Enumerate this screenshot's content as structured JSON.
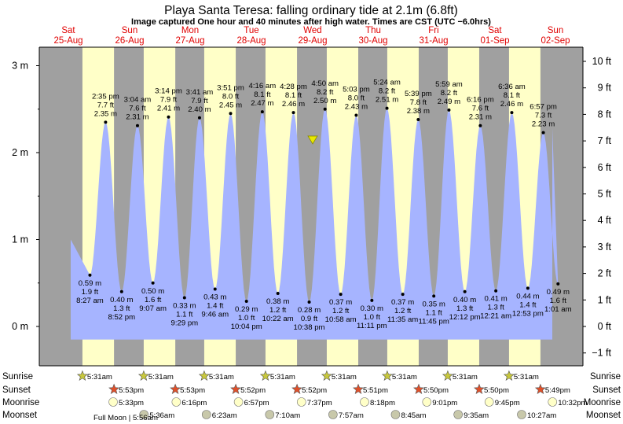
{
  "title": "Playa Santa Teresa: falling  ordinary tide at 2.1m (6.8ft)",
  "subtitle": "Image captured One hour and 40 minutes after high water. Times are CST (UTC −6.0hrs)",
  "colors": {
    "tide_fill": "#a6b4ff",
    "day_band": "#ffffc8",
    "night_band": "#a0a0a0",
    "day_header": "#e00000",
    "now_marker": "#e8e800",
    "sunrise_star": "#c8c83c",
    "sunset_star": "#e0502a",
    "moon": "#ffffc8",
    "moon_set": "#c8c8aa"
  },
  "chart_data": {
    "type": "area",
    "ylabel_left_unit": "m",
    "ylabel_right_unit": "ft",
    "ylim_m": [
      -0.3,
      3.2
    ],
    "left_ticks": [
      "0 m",
      "1 m",
      "2 m",
      "3 m"
    ],
    "right_ticks": [
      "−1 ft",
      "0 ft",
      "1 ft",
      "2 ft",
      "3 ft",
      "4 ft",
      "5 ft",
      "6 ft",
      "7 ft",
      "8 ft",
      "9 ft",
      "10 ft"
    ],
    "days": [
      {
        "name": "Sat",
        "date": "25‑Aug"
      },
      {
        "name": "Sun",
        "date": "26‑Aug"
      },
      {
        "name": "Mon",
        "date": "27‑Aug"
      },
      {
        "name": "Tue",
        "date": "28‑Aug"
      },
      {
        "name": "Wed",
        "date": "29‑Aug"
      },
      {
        "name": "Thu",
        "date": "30‑Aug"
      },
      {
        "name": "Fri",
        "date": "31‑Aug"
      },
      {
        "name": "Sat",
        "date": "01‑Sep"
      },
      {
        "name": "Sun",
        "date": "02‑Sep"
      }
    ],
    "tides": [
      {
        "type": "low",
        "time": "8:27 am",
        "m": "0.59 m",
        "ft": "1.9 ft",
        "value": 0.59
      },
      {
        "type": "high",
        "time": "2:35 pm",
        "m": "2.35 m",
        "ft": "7.7 ft",
        "value": 2.35
      },
      {
        "type": "low",
        "time": "8:52 pm",
        "m": "0.40 m",
        "ft": "1.3 ft",
        "value": 0.4
      },
      {
        "type": "high",
        "time": "3:04 am",
        "m": "2.31 m",
        "ft": "7.6 ft",
        "value": 2.31
      },
      {
        "type": "low",
        "time": "9:07 am",
        "m": "0.50 m",
        "ft": "1.6 ft",
        "value": 0.5
      },
      {
        "type": "high",
        "time": "3:14 pm",
        "m": "2.41 m",
        "ft": "7.9 ft",
        "value": 2.41
      },
      {
        "type": "low",
        "time": "9:29 pm",
        "m": "0.33 m",
        "ft": "1.1 ft",
        "value": 0.33
      },
      {
        "type": "high",
        "time": "3:41 am",
        "m": "2.40 m",
        "ft": "7.9 ft",
        "value": 2.4
      },
      {
        "type": "low",
        "time": "9:46 am",
        "m": "0.43 m",
        "ft": "1.4 ft",
        "value": 0.43
      },
      {
        "type": "high",
        "time": "3:51 pm",
        "m": "2.45 m",
        "ft": "8.0 ft",
        "value": 2.45
      },
      {
        "type": "low",
        "time": "10:04 pm",
        "m": "0.29 m",
        "ft": "1.0 ft",
        "value": 0.29
      },
      {
        "type": "high",
        "time": "4:16 am",
        "m": "2.47 m",
        "ft": "8.1 ft",
        "value": 2.47
      },
      {
        "type": "low",
        "time": "10:22 am",
        "m": "0.38 m",
        "ft": "1.2 ft",
        "value": 0.38
      },
      {
        "type": "high",
        "time": "4:28 pm",
        "m": "2.46 m",
        "ft": "8.1 ft",
        "value": 2.46
      },
      {
        "type": "low",
        "time": "10:38 pm",
        "m": "0.28 m",
        "ft": "0.9 ft",
        "value": 0.28
      },
      {
        "type": "high",
        "time": "4:50 am",
        "m": "2.50 m",
        "ft": "8.2 ft",
        "value": 2.5
      },
      {
        "type": "low",
        "time": "10:58 am",
        "m": "0.37 m",
        "ft": "1.2 ft",
        "value": 0.37
      },
      {
        "type": "high",
        "time": "5:03 pm",
        "m": "2.43 m",
        "ft": "8.0 ft",
        "value": 2.43
      },
      {
        "type": "low",
        "time": "11:11 pm",
        "m": "0.30 m",
        "ft": "1.0 ft",
        "value": 0.3
      },
      {
        "type": "high",
        "time": "5:24 am",
        "m": "2.51 m",
        "ft": "8.2 ft",
        "value": 2.51
      },
      {
        "type": "low",
        "time": "11:35 am",
        "m": "0.37 m",
        "ft": "1.2 ft",
        "value": 0.37
      },
      {
        "type": "high",
        "time": "5:39 pm",
        "m": "2.38 m",
        "ft": "7.8 ft",
        "value": 2.38
      },
      {
        "type": "low",
        "time": "11:45 pm",
        "m": "0.35 m",
        "ft": "1.1 ft",
        "value": 0.35
      },
      {
        "type": "high",
        "time": "5:59 am",
        "m": "2.49 m",
        "ft": "8.2 ft",
        "value": 2.49
      },
      {
        "type": "low",
        "time": "12:12 pm",
        "m": "0.40 m",
        "ft": "1.3 ft",
        "value": 0.4
      },
      {
        "type": "high",
        "time": "6:16 pm",
        "m": "2.31 m",
        "ft": "7.6 ft",
        "value": 2.31
      },
      {
        "type": "low",
        "time": "12:21 am",
        "m": "0.41 m",
        "ft": "1.3 ft",
        "value": 0.41
      },
      {
        "type": "high",
        "time": "6:36 am",
        "m": "2.46 m",
        "ft": "8.1 ft",
        "value": 2.46
      },
      {
        "type": "low",
        "time": "12:53 pm",
        "m": "0.44 m",
        "ft": "1.4 ft",
        "value": 0.44
      },
      {
        "type": "high",
        "time": "6:57 pm",
        "m": "2.23 m",
        "ft": "7.3 ft",
        "value": 2.23
      },
      {
        "type": "low",
        "time": "1:01 am",
        "m": "0.49 m",
        "ft": "1.6 ft",
        "value": 0.49
      }
    ],
    "current_tide_m": 2.1
  },
  "astro": {
    "row_labels": [
      "Sunrise",
      "Sunset",
      "Moonrise",
      "Moonset"
    ],
    "sunrise": [
      "5:31am",
      "5:31am",
      "5:31am",
      "5:31am",
      "5:31am",
      "5:31am",
      "5:31am",
      "5:31am"
    ],
    "sunset": [
      "5:53pm",
      "5:53pm",
      "5:52pm",
      "5:52pm",
      "5:51pm",
      "5:50pm",
      "5:50pm",
      "5:49pm"
    ],
    "moonrise": [
      "5:33pm",
      "6:16pm",
      "6:57pm",
      "7:37pm",
      "8:18pm",
      "9:01pm",
      "9:45pm",
      "10:32pm"
    ],
    "moonset": [
      "5:36am",
      "6:23am",
      "7:10am",
      "7:57am",
      "8:45am",
      "9:35am",
      "10:27am"
    ],
    "full_moon": "Full Moon | 5:56am"
  }
}
